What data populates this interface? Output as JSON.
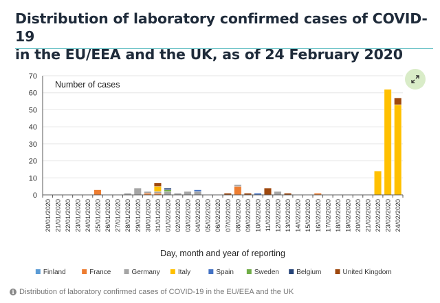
{
  "title_line1": "Distribution of laboratory confirmed cases of COVID-19",
  "title_line2": "in the EU/EEA and the UK, as of 24 February 2020",
  "footer": {
    "caption": "Distribution of laboratory confirmed cases of COVID-19 in the EU/EEA and the UK"
  },
  "chart_data": {
    "type": "bar",
    "stacked": true,
    "title": "Distribution of laboratory confirmed cases of COVID-19 in the EU/EEA and the UK, as of 24 February 2020",
    "ylabel": "Number of cases",
    "xlabel": "Day, month and year of reporting",
    "ylim": [
      0,
      70
    ],
    "yticks": [
      0,
      10,
      20,
      30,
      40,
      50,
      60,
      70
    ],
    "legend_position": "bottom",
    "categories": [
      "20/01/2020",
      "21/01/2020",
      "22/01/2020",
      "23/01/2020",
      "24/01/2020",
      "25/01/2020",
      "26/01/2020",
      "27/01/2020",
      "28/01/2020",
      "29/01/2020",
      "30/01/2020",
      "31/01/2020",
      "01/02/2020",
      "02/02/2020",
      "03/02/2020",
      "04/02/2020",
      "05/02/2020",
      "06/02/2020",
      "07/02/2020",
      "08/02/2020",
      "09/02/2020",
      "10/02/2020",
      "11/02/2020",
      "12/02/2020",
      "13/02/2020",
      "14/02/2020",
      "15/02/2020",
      "16/02/2020",
      "17/02/2020",
      "18/02/2020",
      "19/02/2020",
      "20/02/2020",
      "21/02/2020",
      "22/02/2020",
      "23/02/2020",
      "24/02/2020"
    ],
    "series": [
      {
        "name": "Finland",
        "color": "#5b9bd5",
        "values": [
          0,
          0,
          0,
          0,
          0,
          0,
          0,
          0,
          0,
          0,
          0,
          0,
          0,
          0,
          0,
          0,
          0,
          0,
          0,
          0,
          0,
          0,
          0,
          0,
          0,
          0,
          0,
          0,
          0,
          0,
          0,
          0,
          0,
          0,
          0,
          0
        ]
      },
      {
        "name": "France",
        "color": "#ed7d31",
        "values": [
          0,
          0,
          0,
          0,
          0,
          3,
          0,
          0,
          0,
          0,
          1,
          1,
          0,
          0,
          0,
          0,
          0,
          0,
          0,
          5,
          0,
          0,
          0,
          0,
          0,
          0,
          0,
          1,
          0,
          0,
          0,
          0,
          0,
          0,
          0,
          0
        ]
      },
      {
        "name": "Germany",
        "color": "#a5a5a5",
        "values": [
          0,
          0,
          0,
          0,
          0,
          0,
          0,
          0,
          1,
          4,
          1,
          1,
          2,
          1,
          2,
          2,
          0,
          0,
          0,
          1,
          0,
          0,
          0,
          2,
          0,
          0,
          0,
          0,
          0,
          0,
          0,
          0,
          0,
          0,
          0,
          0
        ]
      },
      {
        "name": "Italy",
        "color": "#ffc000",
        "values": [
          0,
          0,
          0,
          0,
          0,
          0,
          0,
          0,
          0,
          0,
          0,
          3,
          0,
          0,
          0,
          0,
          0,
          0,
          0,
          0,
          0,
          0,
          0,
          0,
          0,
          0,
          0,
          0,
          0,
          0,
          0,
          0,
          0,
          14,
          62,
          53
        ]
      },
      {
        "name": "Spain",
        "color": "#4472c4",
        "values": [
          0,
          0,
          0,
          0,
          0,
          0,
          0,
          0,
          0,
          0,
          0,
          0,
          0,
          0,
          0,
          1,
          0,
          0,
          0,
          0,
          0,
          1,
          0,
          0,
          0,
          0,
          0,
          0,
          0,
          0,
          0,
          0,
          0,
          0,
          0,
          0
        ]
      },
      {
        "name": "Sweden",
        "color": "#70ad47",
        "values": [
          0,
          0,
          0,
          0,
          0,
          0,
          0,
          0,
          0,
          0,
          0,
          0,
          1,
          0,
          0,
          0,
          0,
          0,
          0,
          0,
          0,
          0,
          0,
          0,
          0,
          0,
          0,
          0,
          0,
          0,
          0,
          0,
          0,
          0,
          0,
          0
        ]
      },
      {
        "name": "Belgium",
        "color": "#264478",
        "values": [
          0,
          0,
          0,
          0,
          0,
          0,
          0,
          0,
          0,
          0,
          0,
          0,
          1,
          0,
          0,
          0,
          0,
          0,
          0,
          0,
          0,
          0,
          0,
          0,
          0,
          0,
          0,
          0,
          0,
          0,
          0,
          0,
          0,
          0,
          0,
          0
        ]
      },
      {
        "name": "United Kingdom",
        "color": "#9e480e",
        "values": [
          0,
          0,
          0,
          0,
          0,
          0,
          0,
          0,
          0,
          0,
          0,
          2,
          0,
          0,
          0,
          0,
          0,
          0,
          1,
          0,
          1,
          0,
          4,
          0,
          1,
          0,
          0,
          0,
          0,
          0,
          0,
          0,
          0,
          0,
          0,
          4
        ]
      }
    ]
  }
}
